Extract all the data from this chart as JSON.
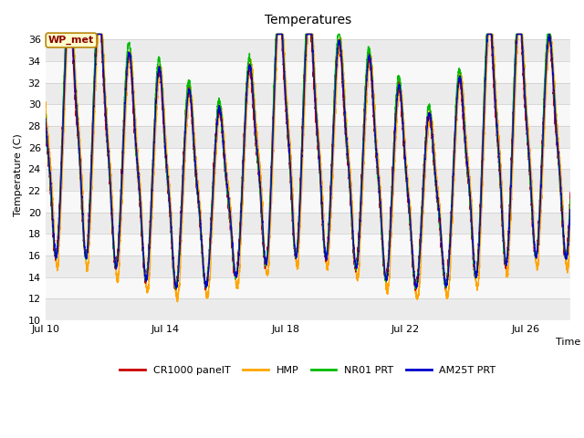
{
  "title": "Temperatures",
  "ylabel": "Temperature (C)",
  "xlabel": "Time",
  "annotation": "WP_met",
  "ylim": [
    10,
    37
  ],
  "yticks": [
    10,
    12,
    14,
    16,
    18,
    20,
    22,
    24,
    26,
    28,
    30,
    32,
    34,
    36
  ],
  "start_day": 10.0,
  "end_day": 27.5,
  "n_points": 5000,
  "line_colors": {
    "CR1000 panelT": "#cc0000",
    "HMP": "#ffa500",
    "NR01 PRT": "#00bb00",
    "AM25T PRT": "#0000cc"
  },
  "legend_labels": [
    "CR1000 panelT",
    "HMP",
    "NR01 PRT",
    "AM25T PRT"
  ],
  "legend_colors": [
    "#cc0000",
    "#ffa500",
    "#00bb00",
    "#0000cc"
  ],
  "band_colors": [
    "#ebebeb",
    "#f8f8f8"
  ],
  "bg_color": "#ffffff",
  "xtick_labels": [
    "Jul 10",
    "Jul 14",
    "Jul 18",
    "Jul 22",
    "Jul 26"
  ],
  "xtick_days": [
    10,
    14,
    18,
    22,
    26
  ],
  "figsize": [
    6.4,
    4.8
  ],
  "dpi": 100
}
